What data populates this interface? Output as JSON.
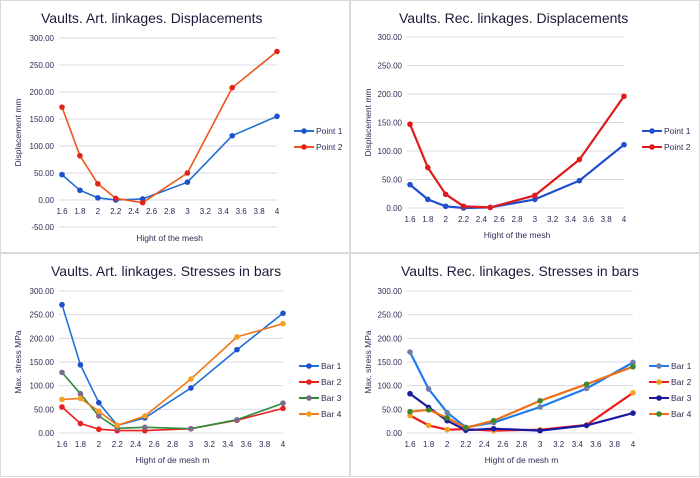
{
  "chart_data": [
    {
      "type": "line",
      "title": "Vaults. Art. linkages. Displacements",
      "xlabel": "Hight of the mesh",
      "ylabel": "Displacement mm",
      "xlim": [
        1.6,
        4
      ],
      "xticks": [
        "1.6",
        "1.8",
        "2",
        "2.2",
        "2.4",
        "2.6",
        "2.8",
        "3",
        "3.2",
        "3.4",
        "3.6",
        "3.8",
        "4"
      ],
      "ylim": [
        -50,
        300
      ],
      "yticks": [
        "-50.00",
        "0.00",
        "50.00",
        "100.00",
        "150.00",
        "200.00",
        "250.00",
        "300.00"
      ],
      "grid": true,
      "legend": "right",
      "x": [
        1.6,
        1.8,
        2.0,
        2.2,
        2.5,
        3.0,
        3.5,
        4.0
      ],
      "series": [
        {
          "name": "Point 1",
          "color": "#1f6fd1",
          "marker": "#1f4fcf",
          "values": [
            47,
            18,
            4,
            0,
            2,
            33,
            119,
            155
          ]
        },
        {
          "name": "Point 2",
          "color": "#f0541a",
          "marker": "#e0241a",
          "values": [
            172,
            82,
            30,
            3,
            -5,
            50,
            208,
            275
          ]
        }
      ]
    },
    {
      "type": "line",
      "title": "Vaults. Rec. linkages. Displacements",
      "xlabel": "Hight of the mesh",
      "ylabel": "Displacement mm",
      "xlim": [
        1.6,
        4
      ],
      "xticks": [
        "1.6",
        "1.8",
        "2",
        "2.2",
        "2.4",
        "2.6",
        "2.8",
        "3",
        "3.2",
        "3.4",
        "3.6",
        "3.8",
        "4"
      ],
      "ylim": [
        0,
        300
      ],
      "yticks": [
        "0.00",
        "50.00",
        "100.00",
        "150.00",
        "200.00",
        "250.00",
        "300.00"
      ],
      "grid": true,
      "legend": "right",
      "x": [
        1.6,
        1.8,
        2.0,
        2.2,
        2.5,
        3.0,
        3.5,
        4.0
      ],
      "series": [
        {
          "name": "Point 1",
          "color": "#1f4fcf",
          "marker": "#1f4fcf",
          "values": [
            41,
            15,
            3,
            0,
            1,
            15,
            48,
            111
          ]
        },
        {
          "name": "Point 2",
          "color": "#e01a1a",
          "marker": "#e01a1a",
          "values": [
            147,
            71,
            24,
            3,
            1,
            22,
            85,
            196
          ]
        }
      ]
    },
    {
      "type": "line",
      "title": "Vaults. Art. linkages. Stresses in bars",
      "xlabel": "Hight of de mesh m",
      "ylabel": "Max. stress MPa",
      "xlim": [
        1.6,
        4
      ],
      "xticks": [
        "1.6",
        "1.8",
        "2",
        "2.2",
        "2.4",
        "2.6",
        "2.8",
        "3",
        "3.2",
        "3.4",
        "3.6",
        "3.8",
        "4"
      ],
      "ylim": [
        0,
        300
      ],
      "yticks": [
        "0.00",
        "50.00",
        "100.00",
        "150.00",
        "200.00",
        "250.00",
        "300.00"
      ],
      "grid": true,
      "legend": "right",
      "x": [
        1.6,
        1.8,
        2.0,
        2.2,
        2.5,
        3.0,
        3.5,
        4.0
      ],
      "series": [
        {
          "name": "Bar 1",
          "color": "#1f6fd8",
          "marker": "#1f4fcf",
          "values": [
            271,
            144,
            64,
            16,
            32,
            95,
            176,
            253
          ]
        },
        {
          "name": "Bar 2",
          "color": "#e8201f",
          "marker": "#e8201f",
          "values": [
            55,
            20,
            8,
            5,
            5,
            9,
            27,
            52
          ]
        },
        {
          "name": "Bar 3",
          "color": "#2e8b3a",
          "marker": "#7b6a8e",
          "values": [
            128,
            83,
            36,
            10,
            12,
            9,
            28,
            63
          ]
        },
        {
          "name": "Bar 4",
          "color": "#f07a18",
          "marker": "#f5a020",
          "values": [
            71,
            73,
            46,
            16,
            36,
            114,
            203,
            231
          ]
        }
      ]
    },
    {
      "type": "line",
      "title": "Vaults. Rec. linkages. Stresses in bars",
      "xlabel": "Hight of de mesh m",
      "ylabel": "Max. stress MPa",
      "xlim": [
        1.6,
        4
      ],
      "xticks": [
        "1.6",
        "1.8",
        "2",
        "2.2",
        "2.4",
        "2.6",
        "2.8",
        "3",
        "3.2",
        "3.4",
        "3.6",
        "3.8",
        "4"
      ],
      "ylim": [
        0,
        300
      ],
      "yticks": [
        "0.00",
        "50.00",
        "100.00",
        "150.00",
        "200.00",
        "250.00",
        "300.00"
      ],
      "grid": true,
      "legend": "right",
      "x": [
        1.6,
        1.8,
        2.0,
        2.2,
        2.5,
        3.0,
        3.5,
        4.0
      ],
      "series": [
        {
          "name": "Bar 1",
          "color": "#1e7cf0",
          "marker": "#6f7fa8",
          "values": [
            171,
            93,
            43,
            12,
            22,
            55,
            94,
            149
          ]
        },
        {
          "name": "Bar 2",
          "color": "#f01a1a",
          "marker": "#f5a020",
          "values": [
            37,
            16,
            7,
            8,
            5,
            7,
            17,
            85
          ]
        },
        {
          "name": "Bar 3",
          "color": "#1a1aa0",
          "marker": "#1a1aa0",
          "values": [
            83,
            54,
            26,
            6,
            9,
            5,
            16,
            42
          ]
        },
        {
          "name": "Bar 4",
          "color": "#f07018",
          "marker": "#3a8a2a",
          "values": [
            45,
            49,
            32,
            11,
            26,
            68,
            103,
            140
          ]
        }
      ]
    }
  ]
}
